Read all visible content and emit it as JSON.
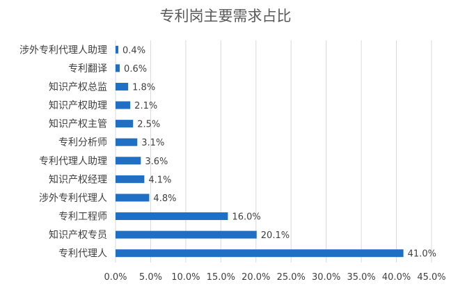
{
  "chart_data": {
    "type": "bar",
    "orientation": "horizontal",
    "title": "专利岗主要需求占比",
    "categories": [
      "涉外专利代理人助理",
      "专利翻译",
      "知识产权总监",
      "知识产权助理",
      "知识产权主管",
      "专利分析师",
      "专利代理人助理",
      "知识产权经理",
      "涉外专利代理人",
      "专利工程师",
      "知识产权专员",
      "专利代理人"
    ],
    "values": [
      0.4,
      0.6,
      1.8,
      2.1,
      2.5,
      3.1,
      3.6,
      4.1,
      4.8,
      16.0,
      20.1,
      41.0
    ],
    "value_labels": [
      "0.4%",
      "0.6%",
      "1.8%",
      "2.1%",
      "2.5%",
      "3.1%",
      "3.6%",
      "4.1%",
      "4.8%",
      "16.0%",
      "20.1%",
      "41.0%"
    ],
    "x_ticks": [
      "0.0%",
      "5.0%",
      "10.0%",
      "15.0%",
      "20.0%",
      "25.0%",
      "30.0%",
      "35.0%",
      "40.0%",
      "45.0%"
    ],
    "xlim": [
      0,
      45
    ],
    "grid": "vertical",
    "legend": "none",
    "bar_color": "#1f6fc5"
  }
}
